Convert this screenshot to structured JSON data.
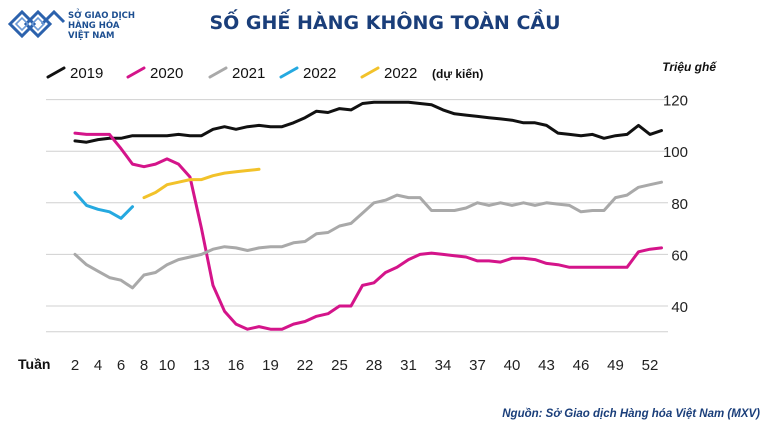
{
  "logo": {
    "line1": "SỞ GIAO DỊCH",
    "line2": "HÀNG HÓA",
    "line3": "VIỆT NAM"
  },
  "source": "Nguồn: Sở Giao dịch Hàng hóa Việt Nam (MXV)",
  "colors": {
    "title": "#1a3e7a",
    "2019": "#111111",
    "2020": "#d4148a",
    "2021": "#a9a9a9",
    "2022": "#25a9e0",
    "2022_forecast": "#f2c22a"
  },
  "chart_data": {
    "type": "line",
    "title": "SỐ GHẾ HÀNG KHÔNG TOÀN CẦU",
    "ylabel": "Triệu ghế",
    "xlabel": "Tuần",
    "ylim": [
      30,
      120
    ],
    "xlim": [
      1,
      54
    ],
    "yticks": [
      40,
      60,
      80,
      100,
      120
    ],
    "xticks": [
      2,
      4,
      6,
      8,
      10,
      13,
      16,
      19,
      22,
      25,
      28,
      31,
      34,
      37,
      40,
      43,
      46,
      49,
      52
    ],
    "grid": "horizontal",
    "legend_position": "top-left",
    "legend_note": "(dự kiến)",
    "series": [
      {
        "name": "2019",
        "x": [
          2,
          3,
          4,
          5,
          6,
          7,
          8,
          9,
          10,
          11,
          12,
          13,
          14,
          15,
          16,
          17,
          18,
          19,
          20,
          21,
          22,
          23,
          24,
          25,
          26,
          27,
          28,
          29,
          30,
          31,
          32,
          33,
          34,
          35,
          36,
          37,
          38,
          39,
          40,
          41,
          42,
          43,
          44,
          45,
          46,
          47,
          48,
          49,
          50,
          51,
          52,
          53
        ],
        "values": [
          104,
          103.5,
          104.5,
          105,
          105,
          106,
          106,
          106,
          106,
          106.5,
          106,
          106,
          108.5,
          109.5,
          108.5,
          109.5,
          110,
          109.5,
          109.5,
          111,
          113,
          115.5,
          115,
          116.5,
          116,
          118.5,
          119,
          119,
          119,
          119,
          118.5,
          118,
          116,
          114.5,
          114,
          113.5,
          113,
          112.5,
          112,
          111,
          111,
          110,
          107,
          106.5,
          106,
          106.5,
          105,
          106,
          106.5,
          110,
          106.5,
          108
        ]
      },
      {
        "name": "2020",
        "x": [
          2,
          3,
          4,
          5,
          6,
          7,
          8,
          9,
          10,
          11,
          12,
          13,
          14,
          15,
          16,
          17,
          18,
          19,
          20,
          21,
          22,
          23,
          24,
          25,
          26,
          27,
          28,
          29,
          30,
          31,
          32,
          33,
          34,
          35,
          36,
          37,
          38,
          39,
          40,
          41,
          42,
          43,
          44,
          45,
          46,
          47,
          48,
          49,
          50,
          51,
          52,
          53
        ],
        "values": [
          107,
          106.5,
          106.5,
          106.5,
          101,
          95,
          94,
          95,
          97,
          95,
          90,
          70,
          48,
          38,
          33,
          31,
          32,
          31,
          31,
          33,
          34,
          36,
          37,
          40,
          40,
          48,
          49,
          53,
          55,
          58,
          60,
          60.5,
          60,
          59.5,
          59,
          57.5,
          57.5,
          57,
          58.5,
          58.5,
          58,
          56.5,
          56,
          55,
          55,
          55,
          55,
          55,
          55,
          61,
          62,
          62.5
        ]
      },
      {
        "name": "2021",
        "x": [
          2,
          3,
          4,
          5,
          6,
          7,
          8,
          9,
          10,
          11,
          12,
          13,
          14,
          15,
          16,
          17,
          18,
          19,
          20,
          21,
          22,
          23,
          24,
          25,
          26,
          27,
          28,
          29,
          30,
          31,
          32,
          33,
          34,
          35,
          36,
          37,
          38,
          39,
          40,
          41,
          42,
          43,
          44,
          45,
          46,
          47,
          48,
          49,
          50,
          51,
          52,
          53
        ],
        "values": [
          60,
          56,
          53.5,
          51,
          50,
          47,
          52,
          53,
          56,
          58,
          59,
          60,
          62,
          63,
          62.5,
          61.5,
          62.5,
          63,
          63,
          64.5,
          65,
          68,
          68.5,
          71,
          72,
          76,
          80,
          81,
          83,
          82,
          82,
          77,
          77,
          77,
          78,
          80,
          79,
          80,
          79,
          80,
          79,
          80,
          79.5,
          79,
          76.5,
          77,
          77,
          82,
          83,
          86,
          87,
          88
        ]
      },
      {
        "name": "2022",
        "x": [
          2,
          3,
          4,
          5,
          6,
          7
        ],
        "values": [
          84,
          79,
          77.5,
          76.5,
          74,
          78.5
        ]
      },
      {
        "name": "2022",
        "x": [
          8,
          9,
          10,
          11,
          12,
          13,
          14,
          15,
          16,
          17,
          18
        ],
        "values": [
          82,
          84,
          87,
          88,
          89,
          89,
          90.5,
          91.5,
          92,
          92.5,
          93
        ]
      }
    ]
  }
}
